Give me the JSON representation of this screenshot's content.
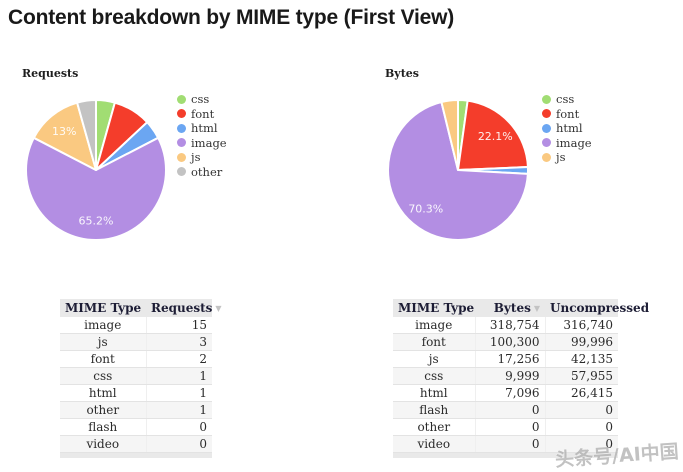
{
  "page": {
    "title": "Content breakdown by MIME type (First View)"
  },
  "watermark": {
    "text": "头条号/AI中国"
  },
  "chart_data": [
    {
      "type": "pie",
      "title": "Requests",
      "categories": [
        "css",
        "font",
        "html",
        "image",
        "js",
        "other"
      ],
      "values": [
        1,
        2,
        1,
        15,
        3,
        1
      ],
      "percent_labels": [
        "",
        "",
        "",
        "65.2%",
        "13%",
        ""
      ],
      "colors": [
        "#a1dd73",
        "#f43d2b",
        "#6ba6f2",
        "#b38ee3",
        "#fac981",
        "#c3c3c3"
      ],
      "total": 23,
      "legend_position": "right",
      "start_angle_deg": 0,
      "direction": "clockwise"
    },
    {
      "type": "pie",
      "title": "Bytes",
      "categories": [
        "css",
        "font",
        "html",
        "image",
        "js"
      ],
      "values": [
        9999,
        100300,
        7096,
        318754,
        17256
      ],
      "percent_labels": [
        "",
        "22.1%",
        "",
        "70.3%",
        ""
      ],
      "colors": [
        "#a1dd73",
        "#f43d2b",
        "#6ba6f2",
        "#b38ee3",
        "#fac981"
      ],
      "total": 453405,
      "legend_position": "right",
      "start_angle_deg": 0,
      "direction": "clockwise"
    }
  ],
  "tables": [
    {
      "headers": [
        "MIME Type",
        "Requests"
      ],
      "sorted_column": 1,
      "sort_indicator": "▼",
      "rows": [
        [
          "image",
          "15"
        ],
        [
          "js",
          "3"
        ],
        [
          "font",
          "2"
        ],
        [
          "css",
          "1"
        ],
        [
          "html",
          "1"
        ],
        [
          "other",
          "1"
        ],
        [
          "flash",
          "0"
        ],
        [
          "video",
          "0"
        ]
      ]
    },
    {
      "headers": [
        "MIME Type",
        "Bytes",
        "Uncompressed"
      ],
      "sorted_column": 1,
      "sort_indicator": "▼",
      "rows": [
        [
          "image",
          "318,754",
          "316,740"
        ],
        [
          "font",
          "100,300",
          "99,996"
        ],
        [
          "js",
          "17,256",
          "42,135"
        ],
        [
          "css",
          "9,999",
          "57,955"
        ],
        [
          "html",
          "7,096",
          "26,415"
        ],
        [
          "flash",
          "0",
          "0"
        ],
        [
          "other",
          "0",
          "0"
        ],
        [
          "video",
          "0",
          "0"
        ]
      ]
    }
  ]
}
